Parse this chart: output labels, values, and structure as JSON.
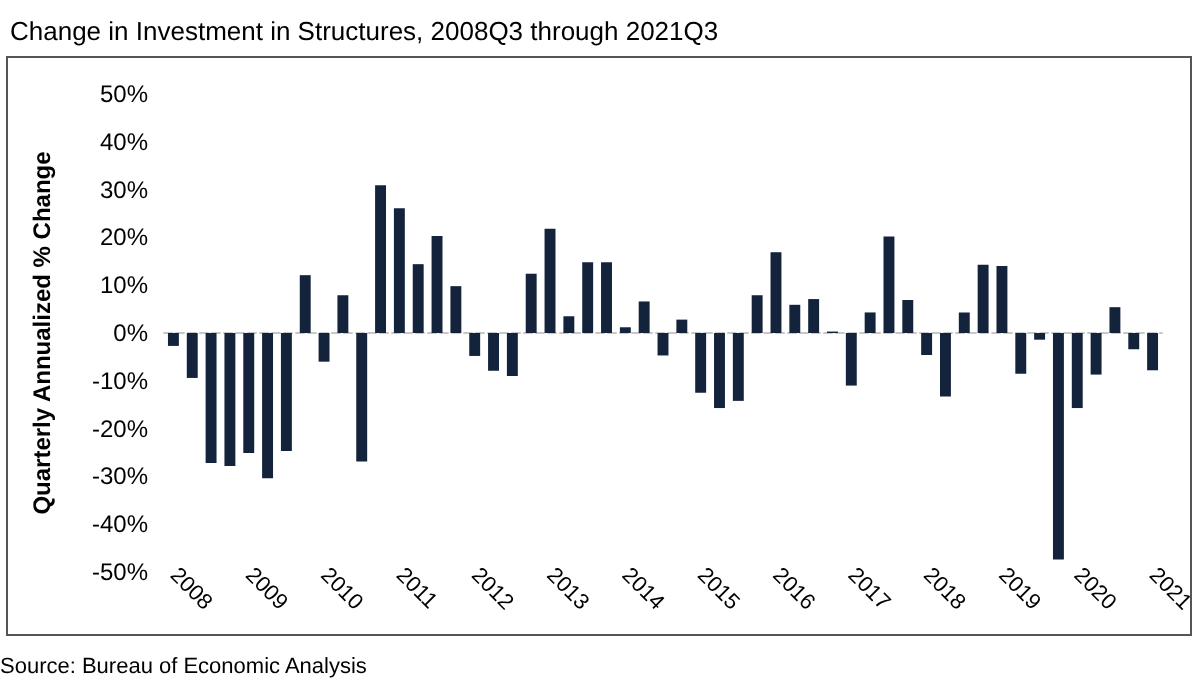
{
  "chart_data": {
    "type": "bar",
    "title": "Change in Investment in Structures, 2008Q3 through 2021Q3",
    "ylabel": "Quarterly Annualized % Change",
    "categories": [
      "2008",
      null,
      null,
      null,
      "2009",
      null,
      null,
      null,
      "2010",
      null,
      null,
      null,
      "2011",
      null,
      null,
      null,
      "2012",
      null,
      null,
      null,
      "2013",
      null,
      null,
      null,
      "2014",
      null,
      null,
      null,
      "2015",
      null,
      null,
      null,
      "2016",
      null,
      null,
      null,
      "2017",
      null,
      null,
      null,
      "2018",
      null,
      null,
      null,
      "2019",
      null,
      null,
      null,
      "2020",
      null,
      null,
      null,
      "2021"
    ],
    "values": [
      -2.7,
      -9.4,
      -27.2,
      -27.8,
      -25.1,
      -30.4,
      -24.7,
      12.1,
      -6,
      7.9,
      -26.9,
      30.9,
      26.1,
      14.4,
      20.3,
      9.8,
      -4.8,
      -7.9,
      -9,
      12.4,
      21.8,
      3.5,
      14.8,
      14.8,
      1.2,
      6.6,
      -4.7,
      2.8,
      -12.5,
      -15.7,
      -14.2,
      7.9,
      16.9,
      5.9,
      7.1,
      0.3,
      -11,
      4.3,
      20.2,
      6.9,
      -4.6,
      -13.3,
      4.3,
      14.3,
      14,
      -8.5,
      -1.4,
      -47.4,
      -15.7,
      -8.7,
      5.4,
      -3.4,
      -7.8
    ],
    "color": "#14233c",
    "ylim": [
      -50,
      50
    ],
    "yticks": [
      {
        "value": -50,
        "label": "-50%"
      },
      {
        "value": -40,
        "label": "-40%"
      },
      {
        "value": -30,
        "label": "-30%"
      },
      {
        "value": -20,
        "label": "-20%"
      },
      {
        "value": -10,
        "label": "-10%"
      },
      {
        "value": 0,
        "label": "0%"
      },
      {
        "value": 10,
        "label": "10%"
      },
      {
        "value": 20,
        "label": "20%"
      },
      {
        "value": 30,
        "label": "30%"
      },
      {
        "value": 40,
        "label": "40%"
      },
      {
        "value": 50,
        "label": "50%"
      }
    ],
    "annotations": [
      "Source: Bureau of Economic Analysis"
    ]
  }
}
